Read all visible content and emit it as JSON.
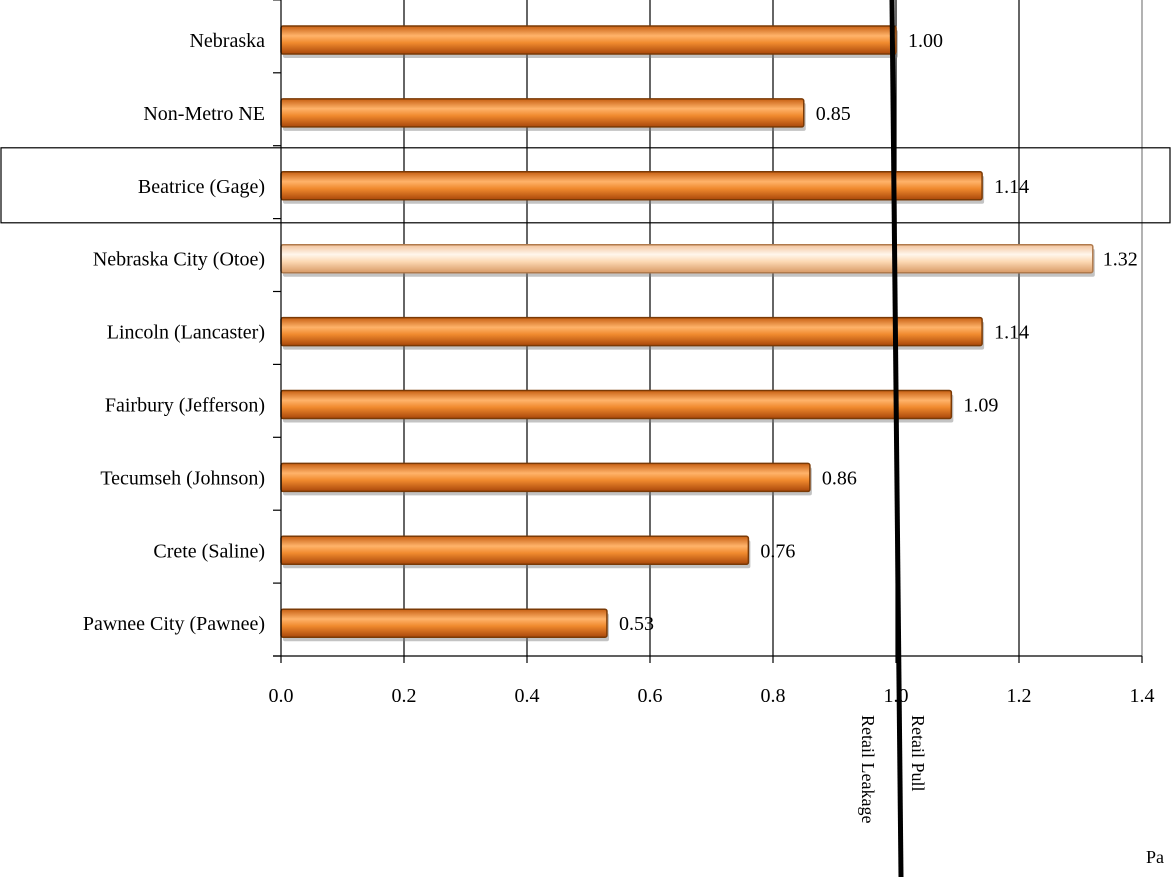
{
  "chart_data": {
    "type": "bar",
    "orientation": "horizontal",
    "categories": [
      "Nebraska",
      "Non-Metro NE",
      "Beatrice (Gage)",
      "Nebraska City (Otoe)",
      "Lincoln (Lancaster)",
      "Fairbury (Jefferson)",
      "Tecumseh (Johnson)",
      "Crete (Saline)",
      "Pawnee City (Pawnee)"
    ],
    "values": [
      1.0,
      0.85,
      1.14,
      1.32,
      1.14,
      1.09,
      0.86,
      0.76,
      0.53
    ],
    "value_labels": [
      "1.00",
      "0.85",
      "1.14",
      "1.32",
      "1.14",
      "1.09",
      "0.86",
      "0.76",
      "0.53"
    ],
    "highlighted_category": "Nebraska City (Otoe)",
    "boxed_category": "Beatrice (Gage)",
    "xlim": [
      0,
      1.4
    ],
    "xticks": [
      0,
      0.2,
      0.4,
      0.6,
      0.8,
      1.0,
      1.2,
      1.4
    ],
    "xtick_labels": [
      "0.0",
      "0.2",
      "0.4",
      "0.6",
      "0.8",
      "1.0",
      "1.2",
      "1.4"
    ],
    "grid": "vertical",
    "reference_line": {
      "value": 1.0,
      "left_label": "Retail Leakage",
      "right_label": "Retail Pull"
    },
    "colors": {
      "bar": "#e8781e",
      "bar_dark": "#b8520a",
      "bar_light": "#ffc08a",
      "highlight_bar": "#fcd9b4",
      "highlight_bar_light": "#fff4e8",
      "grid": "#000000",
      "plot_border": "#808080"
    }
  },
  "footer": {
    "page_label": "Pa"
  }
}
